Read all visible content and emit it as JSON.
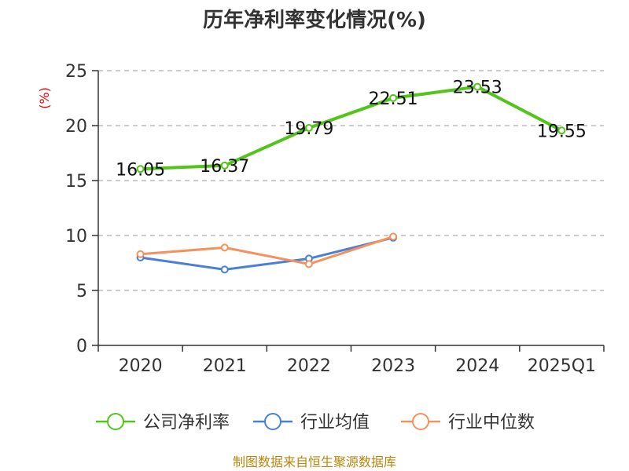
{
  "chart_data": {
    "type": "line",
    "title": "历年净利率变化情况(%)",
    "ylabel": "(%)",
    "xlabel": "",
    "categories": [
      "2020",
      "2021",
      "2022",
      "2023",
      "2024",
      "2025Q1"
    ],
    "ylim": [
      0,
      25
    ],
    "yticks": [
      0,
      5,
      10,
      15,
      20,
      25
    ],
    "grid": true,
    "legend_position": "bottom",
    "series": [
      {
        "name": "公司净利率",
        "color": "#52c41a",
        "values": [
          16.05,
          16.37,
          19.79,
          22.51,
          23.53,
          19.55
        ],
        "labels": [
          "16.05",
          "16.37",
          "19.79",
          "22.51",
          "23.53",
          "19.55"
        ]
      },
      {
        "name": "行业均值",
        "color": "#4a7fd8",
        "values": [
          8.0,
          6.9,
          7.9,
          9.8,
          null,
          null
        ]
      },
      {
        "name": "行业中位数",
        "color": "#f5915c",
        "values": [
          8.3,
          8.9,
          7.4,
          9.9,
          null,
          null
        ]
      }
    ]
  },
  "source": "制图数据来自恒生聚源数据库"
}
